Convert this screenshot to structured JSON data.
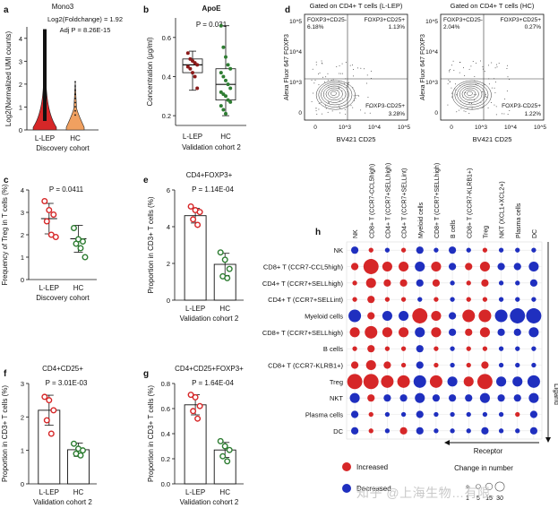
{
  "panel_letters": [
    "a",
    "b",
    "c",
    "d",
    "e",
    "f",
    "g",
    "h"
  ],
  "watermark": "知乎 @上海生物…有限…",
  "colors": {
    "red": "#d62728",
    "green": "#2e7d32",
    "orange": "#f0a060",
    "blue": "#1f2fbf",
    "dark_red": "#8b1a1a"
  },
  "chart_data": [
    {
      "panel": "a",
      "type": "violin",
      "title": "Mono3",
      "annotations": [
        "Log2(Foldchange) = 1.92",
        "Adj P = 8.26E-15"
      ],
      "ylabel": "Log2(Normalized UMI counts)",
      "categories": [
        "L-LEP",
        "HC"
      ],
      "xlabel": "Discovery cohort",
      "yticks": [
        "0",
        "1",
        "2",
        "3",
        "4"
      ],
      "ylim": [
        0,
        4.5
      ],
      "violin_max": [
        4.4,
        2.1
      ],
      "violin_fill": [
        "#d62728",
        "#f0a060"
      ]
    },
    {
      "panel": "b",
      "type": "box",
      "title": "ApoE",
      "annotations": [
        "P = 0.031"
      ],
      "ylabel": "Concentration (μg/ml)",
      "categories": [
        "L-LEP",
        "HC"
      ],
      "xlabel": "Validation cohort 2",
      "yticks": [
        "0.2",
        "0.4",
        "0.6"
      ],
      "ylim": [
        0.15,
        0.7
      ],
      "series": [
        {
          "name": "L-LEP",
          "q1": 0.42,
          "median": 0.46,
          "q3": 0.49,
          "min": 0.33,
          "max": 0.53,
          "points": [
            0.52,
            0.49,
            0.48,
            0.47,
            0.46,
            0.45,
            0.44,
            0.42,
            0.4,
            0.34
          ]
        },
        {
          "name": "HC",
          "q1": 0.28,
          "median": 0.36,
          "q3": 0.44,
          "min": 0.2,
          "max": 0.66,
          "points": [
            0.66,
            0.55,
            0.5,
            0.46,
            0.44,
            0.42,
            0.4,
            0.38,
            0.36,
            0.34,
            0.32,
            0.31,
            0.3,
            0.28,
            0.27,
            0.25,
            0.23,
            0.21
          ]
        }
      ]
    },
    {
      "panel": "c",
      "type": "scatter-bar",
      "annotations": [
        "P = 0.0411"
      ],
      "ylabel": "Frequency of Treg in T cells (%)",
      "categories": [
        "L-LEP",
        "HC"
      ],
      "xlabel": "Discovery cohort",
      "yticks": [
        "0",
        "1",
        "2",
        "3",
        "4"
      ],
      "ylim": [
        0,
        4
      ],
      "series": [
        {
          "name": "L-LEP",
          "mean": 2.72,
          "sd": 0.68,
          "points": [
            3.5,
            3.1,
            2.9,
            2.6,
            2.0,
            1.9
          ]
        },
        {
          "name": "HC",
          "mean": 1.82,
          "sd": 0.6,
          "points": [
            2.3,
            1.8,
            1.7,
            1.6,
            1.4,
            1.0
          ]
        }
      ]
    },
    {
      "panel": "d",
      "type": "flow-contour",
      "plots": [
        {
          "title": "Gated on CD4+ T cells (L-LEP)",
          "ylabel": "Alexa Fluor 647 FOXP3",
          "xlabel": "BV421 CD25",
          "gates": [
            {
              "label": "FOXP3+CD25-",
              "value": "6.18%"
            },
            {
              "label": "FOXP3+CD25+",
              "value": "1.13%"
            },
            {
              "label": "FOXP3-CD25+",
              "value": "3.28%"
            }
          ]
        },
        {
          "title": "Gated on CD4+ T cells (HC)",
          "ylabel": "Alexa Fluor 647 FOXP3",
          "xlabel": "BV421 CD25",
          "gates": [
            {
              "label": "FOXP3+CD25-",
              "value": "2.04%"
            },
            {
              "label": "FOXP3+CD25+",
              "value": "0.27%"
            },
            {
              "label": "FOXP3-CD25+",
              "value": "1.22%"
            }
          ]
        }
      ],
      "yticks": [
        "10^5",
        "10^4",
        "10^3",
        "0"
      ],
      "xticks": [
        "0",
        "10^3",
        "10^4",
        "10^5"
      ]
    },
    {
      "panel": "e",
      "type": "bar",
      "title": "CD4+FOXP3+",
      "annotations": [
        "P = 1.14E-04"
      ],
      "ylabel": "Proportion in CD3+ T cells (%)",
      "categories": [
        "L-LEP",
        "HC"
      ],
      "xlabel": "Validation cohort 2",
      "yticks": [
        "0",
        "2",
        "4",
        "6"
      ],
      "ylim": [
        0,
        6
      ],
      "series": [
        {
          "name": "L-LEP",
          "mean": 4.6,
          "sd": 0.4,
          "points": [
            5.1,
            4.9,
            4.8,
            4.4,
            4.1
          ]
        },
        {
          "name": "HC",
          "mean": 1.95,
          "sd": 0.6,
          "points": [
            2.6,
            2.2,
            1.7,
            1.3,
            1.2
          ]
        }
      ]
    },
    {
      "panel": "f",
      "type": "bar",
      "title": "CD4+CD25+",
      "annotations": [
        "P = 3.01E-03"
      ],
      "ylabel": "Proportion in CD3+ T cells (%)",
      "categories": [
        "L-LEP",
        "HC"
      ],
      "xlabel": "Validation cohort 2",
      "yticks": [
        "0",
        "1",
        "2",
        "3"
      ],
      "ylim": [
        0,
        3
      ],
      "series": [
        {
          "name": "L-LEP",
          "mean": 2.2,
          "sd": 0.45,
          "points": [
            2.6,
            2.5,
            2.2,
            1.9,
            1.5
          ]
        },
        {
          "name": "HC",
          "mean": 1.02,
          "sd": 0.2,
          "points": [
            1.2,
            1.05,
            1.0,
            0.9,
            0.85
          ]
        }
      ]
    },
    {
      "panel": "g",
      "type": "bar",
      "title": "CD4+CD25+FOXP3+",
      "annotations": [
        "P = 1.64E-04"
      ],
      "ylabel": "Proportion in CD3+ T cells (%)",
      "categories": [
        "L-LEP",
        "HC"
      ],
      "xlabel": "Validation cohort 2",
      "yticks": [
        "0.0",
        "0.2",
        "0.4",
        "0.6",
        "0.8"
      ],
      "ylim": [
        0,
        0.8
      ],
      "series": [
        {
          "name": "L-LEP",
          "mean": 0.63,
          "sd": 0.08,
          "points": [
            0.71,
            0.69,
            0.62,
            0.58,
            0.52
          ]
        },
        {
          "name": "HC",
          "mean": 0.27,
          "sd": 0.06,
          "points": [
            0.34,
            0.3,
            0.27,
            0.22,
            0.18
          ]
        }
      ]
    },
    {
      "panel": "h",
      "type": "dot-matrix",
      "columns": [
        "NK",
        "CD8+ T (CCR7-CCL5high)",
        "CD4+ T (CCR7+SELLhigh)",
        "CD4+ T (CCR7+SELLint)",
        "Myeloid cells",
        "CD8+ T (CCR7+SELLhigh)",
        "B cells",
        "CD8+ T (CCR7-KLRB1+)",
        "Treg",
        "NKT (XCL1+XCL2+)",
        "Plasma cells",
        "DC"
      ],
      "rows": [
        "NK",
        "CD8+ T (CCR7-CCL5high)",
        "CD4+ T (CCR7+SELLhigh)",
        "CD4+ T (CCR7+SELLint)",
        "Myeloid cells",
        "CD8+ T (CCR7+SELLhigh)",
        "B cells",
        "CD8+ T (CCR7-KLRB1+)",
        "Treg",
        "NKT",
        "Plasma cells",
        "DC"
      ],
      "column_axis": "Receptor",
      "row_axis": "Ligand",
      "values": [
        [
          -2,
          1,
          -1,
          1,
          -2,
          -1,
          -2,
          -1,
          1,
          -1,
          -1,
          -1
        ],
        [
          2,
          5,
          3,
          3,
          -3,
          3,
          -2,
          2,
          3,
          -2,
          -2,
          -3
        ],
        [
          1,
          3,
          2,
          2,
          -2,
          2,
          -1,
          1,
          2,
          -1,
          -1,
          -2
        ],
        [
          1,
          2,
          1,
          1,
          -1,
          1,
          -1,
          1,
          1,
          -1,
          -1,
          -1
        ],
        [
          -4,
          2,
          -3,
          -3,
          5,
          3,
          -2,
          4,
          4,
          -4,
          -5,
          -5
        ],
        [
          3,
          4,
          3,
          3,
          -3,
          3,
          -2,
          2,
          3,
          -2,
          -2,
          -3
        ],
        [
          1,
          2,
          1,
          1,
          -2,
          1,
          -1,
          1,
          1,
          -1,
          -1,
          -1
        ],
        [
          2,
          3,
          2,
          1,
          -2,
          1,
          -1,
          1,
          2,
          -1,
          -1,
          -1
        ],
        [
          5,
          5,
          4,
          4,
          -4,
          4,
          -3,
          3,
          5,
          -3,
          -3,
          -4
        ],
        [
          -3,
          2,
          -2,
          -2,
          -3,
          -2,
          -2,
          -2,
          -3,
          -2,
          -2,
          -3
        ],
        [
          -2,
          1,
          -1,
          -1,
          -2,
          -1,
          -1,
          -1,
          -1,
          -1,
          1,
          -2
        ],
        [
          -2,
          1,
          -1,
          2,
          -2,
          -1,
          -1,
          -1,
          -2,
          -1,
          -1,
          -2
        ]
      ],
      "legend": {
        "increased": "Increased",
        "decreased": "Decreased",
        "size_title": "Change in number",
        "size_values": [
          "1",
          "5",
          "15",
          "30"
        ]
      }
    }
  ]
}
